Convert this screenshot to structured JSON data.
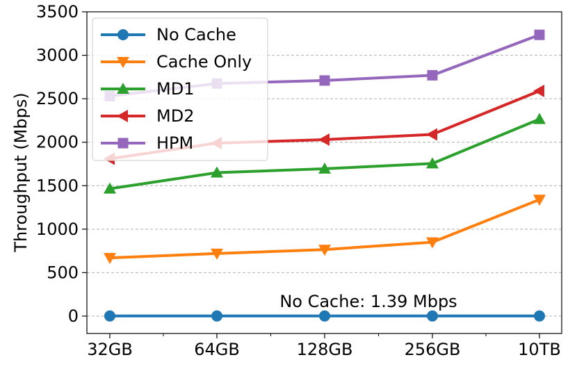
{
  "chart_data": {
    "type": "line",
    "title": "",
    "xlabel": "",
    "ylabel": "Throughput (Mbps)",
    "categories": [
      "32GB",
      "64GB",
      "128GB",
      "256GB",
      "10TB"
    ],
    "ylim": [
      -200,
      3500
    ],
    "yticks": [
      0,
      500,
      1000,
      1500,
      2000,
      2500,
      3000,
      3500
    ],
    "grid": "y-dashed",
    "legend_position": "top-left",
    "annotation": "No Cache: 1.39 Mbps",
    "series": [
      {
        "name": "No Cache",
        "color": "#1f77b4",
        "marker": "circle",
        "values": [
          1.39,
          1.39,
          1.39,
          1.39,
          1.39
        ]
      },
      {
        "name": "Cache Only",
        "color": "#ff7f0e",
        "marker": "triangle-down",
        "values": [
          670,
          720,
          765,
          850,
          1340
        ]
      },
      {
        "name": "MD1",
        "color": "#2ca02c",
        "marker": "triangle-up",
        "values": [
          1465,
          1650,
          1695,
          1755,
          2265
        ]
      },
      {
        "name": "MD2",
        "color": "#d62728",
        "marker": "triangle-left",
        "values": [
          1810,
          1990,
          2030,
          2090,
          2590
        ]
      },
      {
        "name": "HPM",
        "color": "#9467bd",
        "marker": "square",
        "values": [
          2530,
          2675,
          2710,
          2770,
          3235
        ]
      }
    ]
  }
}
